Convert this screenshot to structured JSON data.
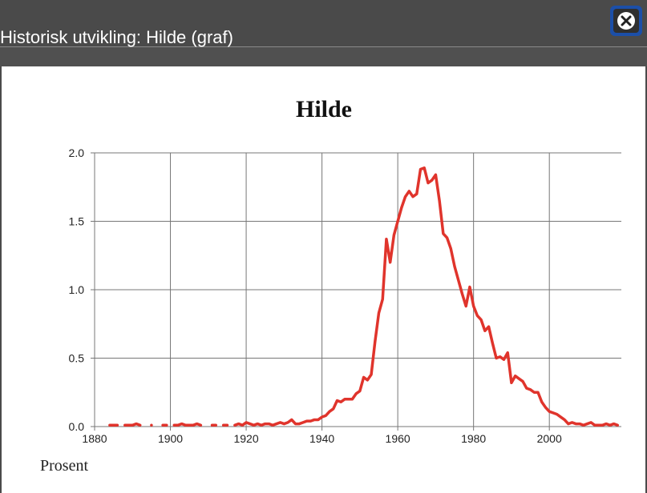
{
  "dialog": {
    "title": "Historisk utvikling: Hilde (graf)"
  },
  "chart_data": {
    "type": "line",
    "title": "Hilde",
    "ylabel": "Prosent",
    "x": [
      1884,
      1885,
      1886,
      1887,
      1888,
      1889,
      1890,
      1891,
      1892,
      1893,
      1894,
      1895,
      1896,
      1897,
      1898,
      1899,
      1900,
      1901,
      1902,
      1903,
      1904,
      1905,
      1906,
      1907,
      1908,
      1909,
      1910,
      1911,
      1912,
      1913,
      1914,
      1915,
      1916,
      1917,
      1918,
      1919,
      1920,
      1921,
      1922,
      1923,
      1924,
      1925,
      1926,
      1927,
      1928,
      1929,
      1930,
      1931,
      1932,
      1933,
      1934,
      1935,
      1936,
      1937,
      1938,
      1939,
      1940,
      1941,
      1942,
      1943,
      1944,
      1945,
      1946,
      1947,
      1948,
      1949,
      1950,
      1951,
      1952,
      1953,
      1954,
      1955,
      1956,
      1957,
      1958,
      1959,
      1960,
      1961,
      1962,
      1963,
      1964,
      1965,
      1966,
      1967,
      1968,
      1969,
      1970,
      1971,
      1972,
      1973,
      1974,
      1975,
      1976,
      1977,
      1978,
      1979,
      1980,
      1981,
      1982,
      1983,
      1984,
      1985,
      1986,
      1987,
      1988,
      1989,
      1990,
      1991,
      1992,
      1993,
      1994,
      1995,
      1996,
      1997,
      1998,
      1999,
      2000,
      2001,
      2002,
      2003,
      2004,
      2005,
      2006,
      2007,
      2008,
      2009,
      2010,
      2011,
      2012,
      2013,
      2014,
      2015,
      2016,
      2017,
      2018
    ],
    "series": [
      {
        "name": "Hilde",
        "color": "#e0342c",
        "values": [
          0.01,
          0.01,
          0.01,
          null,
          0.01,
          0.01,
          0.01,
          0.02,
          0.01,
          null,
          null,
          0.01,
          null,
          null,
          0.01,
          0.01,
          null,
          0.01,
          0.01,
          0.02,
          0.01,
          0.01,
          0.01,
          0.02,
          0.01,
          null,
          null,
          0.01,
          0.01,
          null,
          0.01,
          0.01,
          null,
          0.01,
          0.02,
          0.01,
          0.03,
          0.02,
          0.01,
          0.02,
          0.01,
          0.02,
          0.02,
          0.01,
          0.02,
          0.03,
          0.02,
          0.03,
          0.05,
          0.02,
          0.02,
          0.03,
          0.04,
          0.04,
          0.05,
          0.05,
          0.07,
          0.08,
          0.11,
          0.13,
          0.19,
          0.18,
          0.2,
          0.2,
          0.2,
          0.24,
          0.26,
          0.36,
          0.34,
          0.38,
          0.62,
          0.83,
          0.93,
          1.37,
          1.2,
          1.4,
          1.5,
          1.6,
          1.68,
          1.72,
          1.68,
          1.7,
          1.88,
          1.89,
          1.78,
          1.8,
          1.84,
          1.65,
          1.41,
          1.38,
          1.3,
          1.17,
          1.07,
          0.97,
          0.88,
          1.02,
          0.88,
          0.81,
          0.78,
          0.7,
          0.73,
          0.61,
          0.5,
          0.51,
          0.49,
          0.54,
          0.32,
          0.37,
          0.35,
          0.33,
          0.28,
          0.27,
          0.25,
          0.25,
          0.18,
          0.14,
          0.11,
          0.1,
          0.09,
          0.07,
          0.05,
          0.02,
          0.03,
          0.02,
          0.02,
          0.01,
          0.02,
          0.03,
          0.01,
          0.01,
          0.01,
          0.02,
          0.01,
          0.02,
          0.01
        ]
      }
    ],
    "xlim": [
      1880,
      2019
    ],
    "xticks": [
      1880,
      1900,
      1920,
      1940,
      1960,
      1980,
      2000
    ],
    "ylim": [
      0,
      2
    ],
    "yticks": [
      {
        "value": 0,
        "label": "0.0"
      },
      0.5,
      {
        "value": 1,
        "label": "1.0"
      },
      1.5,
      {
        "value": 2,
        "label": "2.0"
      }
    ],
    "grid": true
  }
}
